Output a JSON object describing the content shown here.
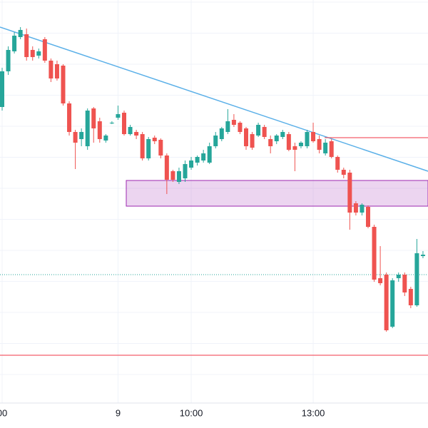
{
  "chart_data": {
    "type": "candlestick",
    "categories": [
      "00",
      null,
      null,
      null,
      null,
      null,
      null,
      null,
      null,
      null,
      null,
      null,
      null,
      null,
      null,
      null,
      null,
      null,
      null,
      "9",
      null,
      null,
      null,
      null,
      null,
      null,
      null,
      null,
      null,
      null,
      null,
      "10:00",
      null,
      null,
      null,
      null,
      null,
      null,
      null,
      null,
      null,
      null,
      null,
      null,
      null,
      null,
      null,
      null,
      null,
      null,
      null,
      "13:00",
      null,
      null,
      null,
      null,
      null,
      null,
      null,
      null,
      null,
      null,
      null,
      null,
      null,
      null,
      null,
      null,
      null,
      null
    ],
    "open": [
      450,
      500,
      528,
      548,
      552,
      530,
      522,
      545,
      515,
      510,
      508,
      455,
      415,
      405,
      395,
      448,
      430,
      403,
      428,
      435,
      442,
      412,
      415,
      412,
      378,
      407,
      404,
      382,
      360,
      345,
      350,
      365,
      372,
      375,
      372,
      395,
      405,
      415,
      432,
      428,
      420,
      412,
      410,
      422,
      405,
      402,
      408,
      412,
      395,
      395,
      395,
      415,
      405,
      385,
      402,
      380,
      362,
      358,
      315,
      302,
      310,
      282,
      210,
      215,
      142,
      210,
      215,
      195,
      172,
      241
    ],
    "high": [
      505,
      535,
      555,
      562,
      560,
      535,
      532,
      548,
      518,
      515,
      510,
      458,
      418,
      420,
      448,
      450,
      435,
      412,
      430,
      452,
      445,
      425,
      418,
      415,
      408,
      410,
      406,
      385,
      362,
      365,
      375,
      380,
      382,
      390,
      400,
      415,
      422,
      447,
      440,
      430,
      422,
      415,
      428,
      425,
      410,
      412,
      418,
      415,
      400,
      402,
      418,
      428,
      410,
      405,
      405,
      382,
      365,
      362,
      318,
      315,
      312,
      285,
      255,
      218,
      210,
      218,
      218,
      198,
      265,
      248
    ],
    "low": [
      445,
      495,
      525,
      545,
      515,
      515,
      518,
      512,
      485,
      487,
      452,
      410,
      363,
      395,
      390,
      400,
      400,
      400,
      426,
      432,
      410,
      410,
      405,
      375,
      375,
      398,
      378,
      328,
      345,
      342,
      345,
      362,
      368,
      372,
      370,
      392,
      402,
      412,
      422,
      412,
      390,
      390,
      408,
      405,
      385,
      398,
      405,
      388,
      360,
      392,
      392,
      400,
      385,
      382,
      378,
      358,
      350,
      278,
      298,
      298,
      280,
      205,
      200,
      135,
      140,
      205,
      185,
      168,
      170,
      238
    ],
    "close": [
      500,
      530,
      550,
      558,
      520,
      520,
      528,
      515,
      490,
      490,
      455,
      415,
      400,
      415,
      445,
      420,
      405,
      410,
      428,
      440,
      412,
      422,
      410,
      378,
      405,
      402,
      382,
      348,
      348,
      360,
      370,
      375,
      380,
      385,
      395,
      410,
      420,
      430,
      425,
      415,
      395,
      393,
      425,
      408,
      395,
      410,
      415,
      390,
      390,
      400,
      415,
      402,
      390,
      400,
      380,
      362,
      355,
      302,
      302,
      313,
      282,
      208,
      203,
      137,
      207,
      215,
      190,
      172,
      245,
      243
    ],
    "up_color": "#26a69a",
    "down_color": "#ef5350",
    "ylim": [
      35,
      600
    ],
    "grid": true
  }
}
